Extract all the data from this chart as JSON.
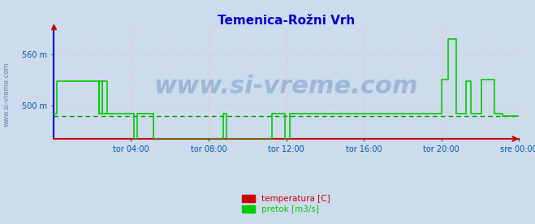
{
  "title": "Temenica-Rožni Vrh",
  "title_color": "#0000cc",
  "title_fontsize": 11,
  "bg_color": "#ccdcec",
  "plot_bg_color": "#ccdcec",
  "grid_color_major": "#ffaaaa",
  "grid_color_minor": "#ffcccc",
  "left_spine_color": "#0000cc",
  "bottom_spine_color": "#cc0000",
  "tick_color": "#0055aa",
  "ylim": [
    460,
    590
  ],
  "yticks": [
    500,
    560
  ],
  "ytick_labels": [
    "500 m",
    "560 m"
  ],
  "xlim": [
    0,
    288
  ],
  "xtick_positions": [
    48,
    96,
    144,
    192,
    240,
    288
  ],
  "xtick_labels": [
    "tor 04:00",
    "tor 08:00",
    "tor 12:00",
    "tor 16:00",
    "tor 20:00",
    "sre 00:00"
  ],
  "pretok_color": "#00cc00",
  "pretok_linewidth": 1.2,
  "avg_line_color": "#009900",
  "avg_line_style": "--",
  "avg_line_value": 487,
  "avg_line_linewidth": 1.0,
  "pretok_x": [
    0,
    2,
    2,
    28,
    28,
    30,
    30,
    33,
    33,
    28,
    28,
    30,
    30,
    50,
    50,
    52,
    52,
    62,
    62,
    105,
    105,
    107,
    107,
    135,
    135,
    143,
    143,
    146,
    146,
    240,
    240,
    244,
    244,
    249,
    249,
    255,
    255,
    258,
    258,
    265,
    265,
    273,
    273,
    278,
    278,
    288
  ],
  "pretok_y": [
    490,
    490,
    528,
    528,
    490,
    490,
    528,
    528,
    490,
    490,
    528,
    528,
    490,
    490,
    460,
    460,
    490,
    490,
    460,
    460,
    490,
    490,
    460,
    460,
    490,
    490,
    460,
    460,
    490,
    490,
    530,
    530,
    578,
    578,
    490,
    490,
    528,
    528,
    490,
    490,
    530,
    530,
    490,
    490,
    487,
    487
  ],
  "legend_items": [
    {
      "label": "temperatura [C]",
      "color": "#cc0000"
    },
    {
      "label": "pretok [m3/s]",
      "color": "#00cc00"
    }
  ],
  "watermark_text": "www.si-vreme.com",
  "watermark_color": "#3366aa",
  "watermark_alpha": 0.3,
  "watermark_fontsize": 22,
  "sidebar_text": "www.si-vreme.com",
  "sidebar_color": "#4477aa",
  "sidebar_fontsize": 6
}
